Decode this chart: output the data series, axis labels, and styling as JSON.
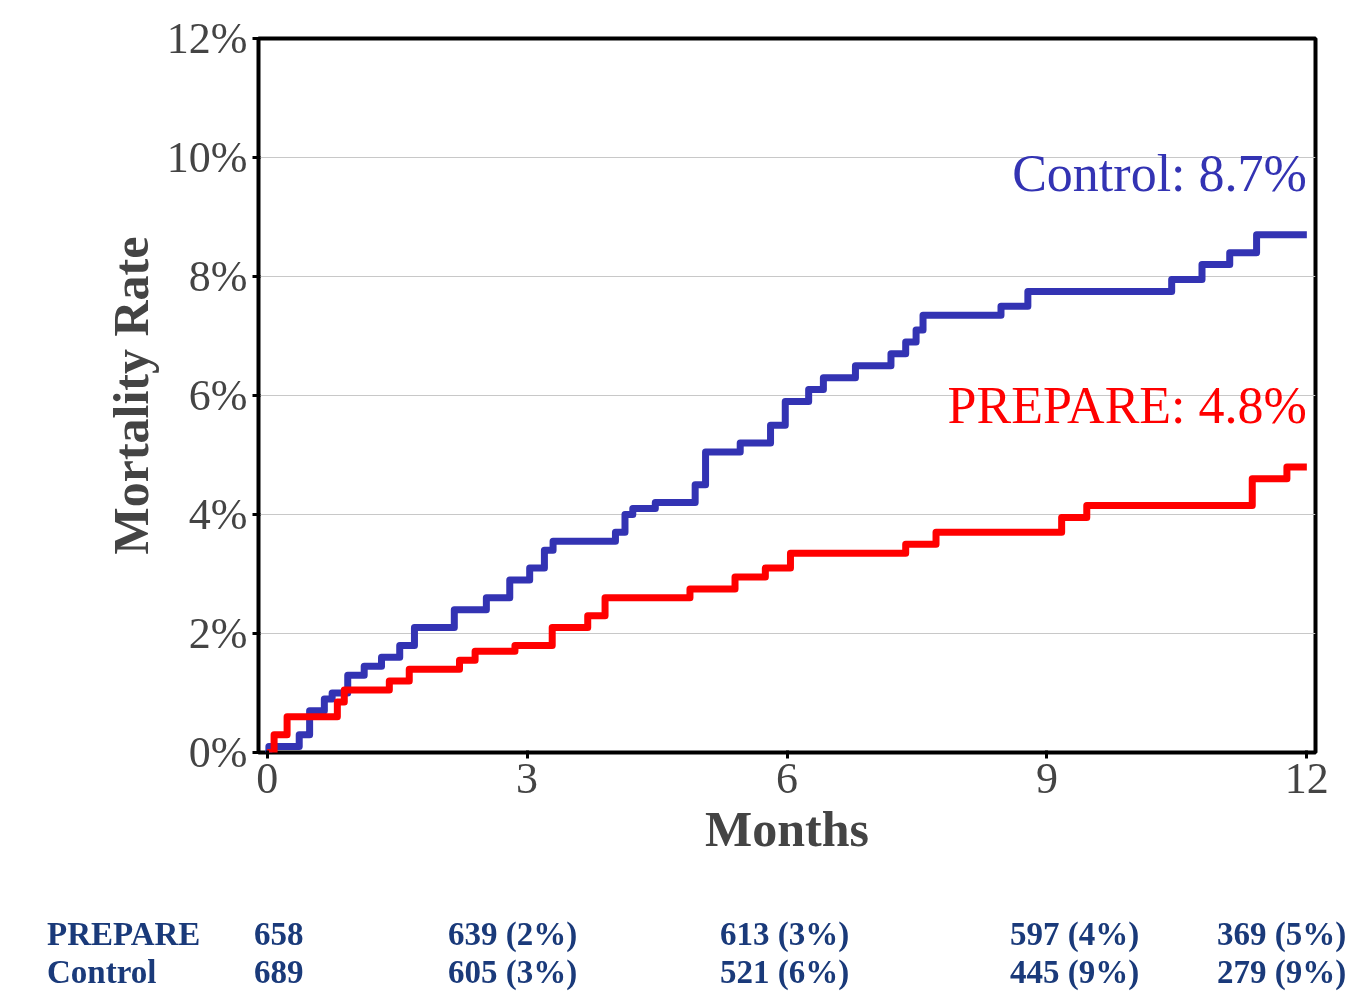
{
  "chart_data": {
    "type": "step",
    "xlabel": "Months",
    "ylabel": "Mortality Rate",
    "xlim": [
      -0.1,
      12.1
    ],
    "ylim": [
      0,
      12
    ],
    "xticks": [
      0,
      3,
      6,
      9,
      12
    ],
    "yticks": [
      {
        "value": 0,
        "label": "0%"
      },
      {
        "value": 2,
        "label": "2%"
      },
      {
        "value": 4,
        "label": "4%"
      },
      {
        "value": 6,
        "label": "6%"
      },
      {
        "value": 8,
        "label": "8%"
      },
      {
        "value": 10,
        "label": "10%"
      },
      {
        "value": 12,
        "label": "12%"
      }
    ],
    "grid": "y",
    "legend": false,
    "marker": "none",
    "line_style": "solid",
    "series": [
      {
        "name": "Control: 8.7%",
        "color": "#3333b3",
        "x": [
          0,
          0.02,
          0.37,
          0.49,
          0.66,
          0.75,
          0.93,
          1.12,
          1.32,
          1.53,
          1.7,
          2.16,
          2.53,
          2.8,
          3.03,
          3.2,
          3.3,
          4.02,
          4.13,
          4.22,
          4.48,
          4.94,
          5.06,
          5.46,
          5.81,
          5.98,
          6.25,
          6.42,
          6.79,
          7.2,
          7.37,
          7.49,
          7.57,
          8.47,
          8.78,
          10.44,
          10.79,
          11.11,
          11.42,
          12
        ],
        "values": [
          0,
          0.1,
          0.3,
          0.7,
          0.9,
          1.0,
          1.3,
          1.45,
          1.6,
          1.8,
          2.1,
          2.4,
          2.6,
          2.9,
          3.1,
          3.4,
          3.55,
          3.7,
          4.0,
          4.1,
          4.2,
          4.5,
          5.05,
          5.2,
          5.5,
          5.9,
          6.1,
          6.3,
          6.5,
          6.7,
          6.9,
          7.1,
          7.35,
          7.5,
          7.75,
          7.95,
          8.2,
          8.4,
          8.7,
          8.7
        ]
      },
      {
        "name": "PREPARE: 4.8%",
        "color": "#ff0000",
        "x": [
          0,
          0.08,
          0.23,
          0.81,
          0.89,
          1.41,
          1.64,
          2.22,
          2.4,
          2.86,
          3.29,
          3.7,
          3.9,
          4.88,
          5.4,
          5.75,
          6.04,
          7.37,
          7.72,
          9.17,
          9.46,
          11.37,
          11.77,
          12
        ],
        "values": [
          0,
          0.3,
          0.6,
          0.85,
          1.05,
          1.2,
          1.4,
          1.55,
          1.7,
          1.8,
          2.1,
          2.3,
          2.6,
          2.75,
          2.95,
          3.1,
          3.35,
          3.5,
          3.7,
          3.95,
          4.15,
          4.6,
          4.8,
          4.8
        ]
      }
    ],
    "annotations": [
      "PREPARE",
      "658",
      "639 (2%)",
      "613 (3%)",
      "597 (4%)",
      "369 (5%)",
      "Control",
      "689",
      "605 (3%)",
      "521 (6%)",
      "445 (9%)",
      "279 (9%)"
    ]
  }
}
